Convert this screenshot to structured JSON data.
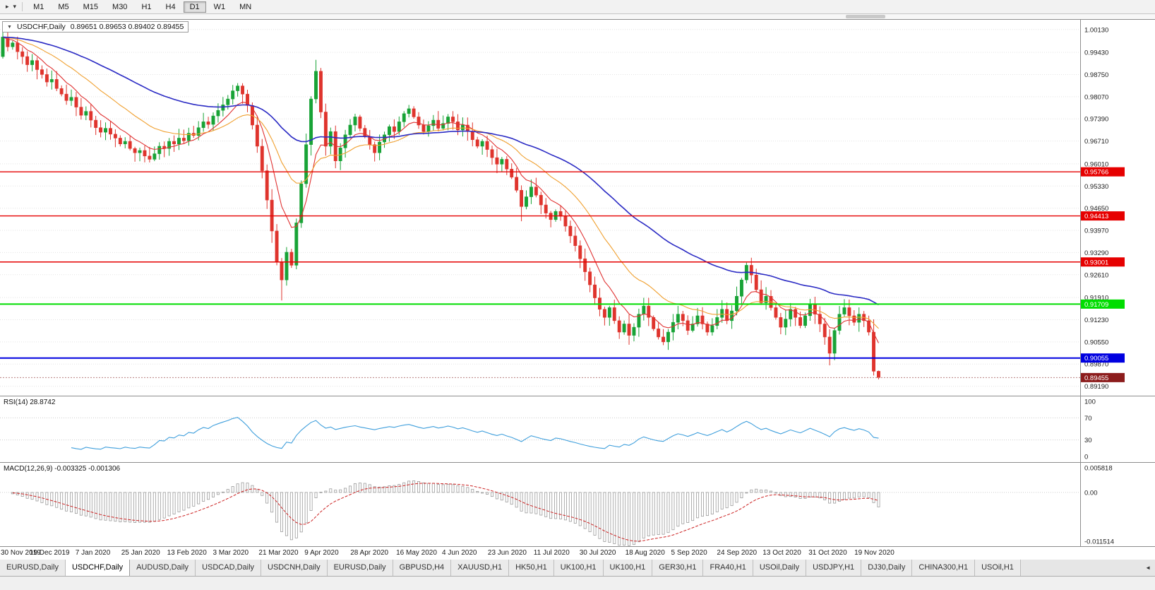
{
  "toolbar": {
    "timeframes": [
      "M1",
      "M5",
      "M15",
      "M30",
      "H1",
      "H4",
      "D1",
      "W1",
      "MN"
    ],
    "active_timeframe": "D1",
    "pointer_icon": "▸",
    "dropdown_icon": "▾"
  },
  "chart": {
    "title": "USDCHF,Daily",
    "ohlc_text": "0.89651 0.89653 0.89402 0.89455",
    "collapse_icon": "▼"
  },
  "indicators": {
    "rsi_label": "RSI(14) 28.8742",
    "macd_label": "MACD(12,26,9) -0.003325 -0.001306"
  },
  "colors": {
    "up": "#18a336",
    "down": "#df342d",
    "rsi": "#3f9fdc",
    "macd_signal": "#cc2222",
    "macd_hist": "#9b9b9b",
    "grid": "#e3e3e3"
  },
  "chart_data": {
    "type": "candlestick",
    "symbol": "USDCHF",
    "timeframe": "Daily",
    "price_range": [
      0.889,
      1.0045
    ],
    "first_open": 0.993,
    "closes": [
      0.999,
      0.996,
      0.9972,
      0.9945,
      0.993,
      0.9905,
      0.9918,
      0.989,
      0.9875,
      0.9852,
      0.986,
      0.9832,
      0.9815,
      0.9795,
      0.9805,
      0.9775,
      0.975,
      0.9762,
      0.9735,
      0.9712,
      0.9698,
      0.971,
      0.9692,
      0.968,
      0.9662,
      0.967,
      0.9648,
      0.9635,
      0.9642,
      0.9625,
      0.9615,
      0.9632,
      0.9655,
      0.9648,
      0.967,
      0.9662,
      0.968,
      0.9672,
      0.9695,
      0.9688,
      0.9712,
      0.973,
      0.9722,
      0.9748,
      0.9765,
      0.9782,
      0.98,
      0.9825,
      0.984,
      0.9815,
      0.978,
      0.972,
      0.9655,
      0.958,
      0.949,
      0.9395,
      0.93,
      0.9245,
      0.933,
      0.929,
      0.942,
      0.954,
      0.966,
      0.98,
      0.9885,
      0.976,
      0.9655,
      0.97,
      0.961,
      0.965,
      0.969,
      0.972,
      0.9745,
      0.971,
      0.9685,
      0.966,
      0.9635,
      0.9668,
      0.969,
      0.9715,
      0.97,
      0.973,
      0.9755,
      0.977,
      0.9745,
      0.972,
      0.97,
      0.9718,
      0.9735,
      0.971,
      0.9725,
      0.9745,
      0.973,
      0.9705,
      0.972,
      0.97,
      0.9675,
      0.9655,
      0.967,
      0.9645,
      0.962,
      0.96,
      0.9615,
      0.9585,
      0.956,
      0.952,
      0.947,
      0.95,
      0.953,
      0.9505,
      0.9475,
      0.945,
      0.943,
      0.9455,
      0.944,
      0.941,
      0.938,
      0.935,
      0.931,
      0.927,
      0.923,
      0.919,
      0.9155,
      0.913,
      0.916,
      0.912,
      0.9085,
      0.911,
      0.9075,
      0.91,
      0.914,
      0.9165,
      0.913,
      0.9095,
      0.907,
      0.9055,
      0.9085,
      0.9115,
      0.914,
      0.912,
      0.909,
      0.911,
      0.9135,
      0.911,
      0.9085,
      0.9105,
      0.913,
      0.9155,
      0.912,
      0.915,
      0.9195,
      0.9245,
      0.929,
      0.926,
      0.9215,
      0.9175,
      0.9195,
      0.916,
      0.913,
      0.91,
      0.9125,
      0.9155,
      0.913,
      0.9105,
      0.9135,
      0.917,
      0.914,
      0.911,
      0.907,
      0.902,
      0.909,
      0.914,
      0.916,
      0.9135,
      0.9115,
      0.914,
      0.912,
      0.9085,
      0.8965,
      0.89455
    ],
    "wick_overrides": {
      "0": {
        "h": 1.0013
      },
      "57": {
        "l": 0.9182
      },
      "64": {
        "h": 0.992
      },
      "106": {
        "l": 0.9425
      },
      "135": {
        "l": 0.9045
      },
      "169": {
        "l": 0.8983
      },
      "178": {
        "l": 0.8952
      },
      "179": {
        "h": 0.8967,
        "l": 0.894
      }
    },
    "moving_averages": [
      {
        "period": 8,
        "color": "#e03333"
      },
      {
        "period": 21,
        "color": "#f0a030"
      },
      {
        "period": 55,
        "color": "#2b2bc4"
      }
    ],
    "levels": [
      {
        "price": 0.95766,
        "label": "0.95766",
        "color": "#e60000",
        "width": 1.4
      },
      {
        "price": 0.94413,
        "label": "0.94413",
        "color": "#e60000",
        "width": 1.4
      },
      {
        "price": 0.93001,
        "label": "0.93001",
        "color": "#e60000",
        "width": 1.4
      },
      {
        "price": 0.91709,
        "label": "0.91709",
        "color": "#00dd00",
        "width": 2
      },
      {
        "price": 0.90055,
        "label": "0.90055",
        "color": "#0000e0",
        "width": 2
      }
    ],
    "current_price": {
      "value": 0.89455,
      "label": "0.89455",
      "tag_color": "#8c1c1c"
    },
    "rsi": {
      "period": 14,
      "current": 28.8742
    },
    "macd": {
      "fast": 12,
      "slow": 26,
      "signal": 9,
      "current": [
        -0.003325,
        -0.001306
      ]
    },
    "macd_range": [
      -0.011514,
      0.005818
    ],
    "price_axis_labels": [
      "1.00130",
      "0.99430",
      "0.98750",
      "0.98070",
      "0.97390",
      "0.96710",
      "0.96010",
      "0.95330",
      "0.94650",
      "0.93970",
      "0.93290",
      "0.92610",
      "0.91910",
      "0.91230",
      "0.90550",
      "0.89870",
      "0.89190"
    ],
    "rsi_axis_labels": [
      "100",
      "70",
      "30",
      "0"
    ],
    "macd_axis_labels": [
      "0.005818",
      "0.00",
      "-0.011514"
    ],
    "date_labels": [
      "30 Nov 2019",
      "19 Dec 2019",
      "7 Jan 2020",
      "25 Jan 2020",
      "13 Feb 2020",
      "3 Mar 2020",
      "21 Mar 2020",
      "9 Apr 2020",
      "28 Apr 2020",
      "16 May 2020",
      "4 Jun 2020",
      "23 Jun 2020",
      "11 Jul 2020",
      "30 Jul 2020",
      "18 Aug 2020",
      "5 Sep 2020",
      "24 Sep 2020",
      "13 Oct 2020",
      "31 Oct 2020",
      "19 Nov 2020"
    ]
  },
  "tabs": {
    "items": [
      "EURUSD,Daily",
      "USDCHF,Daily",
      "AUDUSD,Daily",
      "USDCAD,Daily",
      "USDCNH,Daily",
      "EURUSD,Daily",
      "GBPUSD,H4",
      "XAUUSD,H1",
      "HK50,H1",
      "UK100,H1",
      "UK100,H1",
      "GER30,H1",
      "FRA40,H1",
      "USOil,Daily",
      "USDJPY,H1",
      "DJ30,Daily",
      "CHINA300,H1",
      "USOil,H1"
    ],
    "active_index": 1,
    "scroll_icon": "◄"
  }
}
